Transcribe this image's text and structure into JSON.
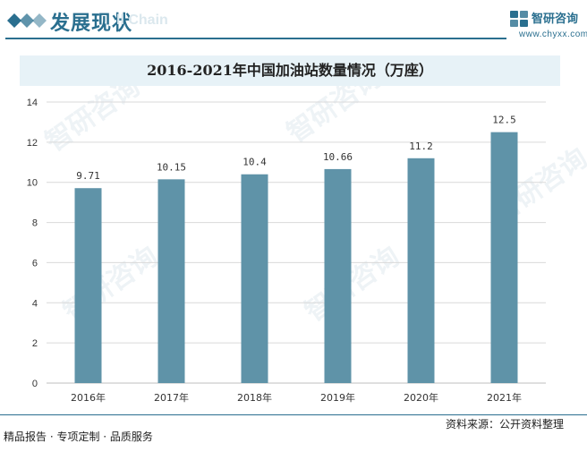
{
  "header": {
    "title": "发展现状",
    "ghost_text": "ll Chain",
    "logo_name": "智研咨询",
    "logo_url": "www.chyxx.com"
  },
  "colors": {
    "accent": "#2a6f8f",
    "bar": "#5f93a8",
    "title_bg": "#e7f2f7",
    "grid": "#d9d9d9"
  },
  "chart_data": {
    "type": "bar",
    "title": "2016-2021年中国加油站数量情况（万座）",
    "categories": [
      "2016年",
      "2017年",
      "2018年",
      "2019年",
      "2020年",
      "2021年"
    ],
    "values": [
      9.71,
      10.15,
      10.4,
      10.66,
      11.2,
      12.5
    ],
    "data_labels": [
      "9.71",
      "10.15",
      "10.4",
      "10.66",
      "11.2",
      "12.5"
    ],
    "yticks": [
      "0",
      "2",
      "4",
      "6",
      "8",
      "10",
      "12",
      "14"
    ],
    "ylim": [
      0,
      14
    ],
    "grid": true,
    "legend": "none"
  },
  "footer": {
    "tagline": "精品报告 · 专项定制 · 品质服务",
    "source": "资料来源：公开资料整理"
  },
  "watermark": {
    "text": "智研咨询"
  }
}
